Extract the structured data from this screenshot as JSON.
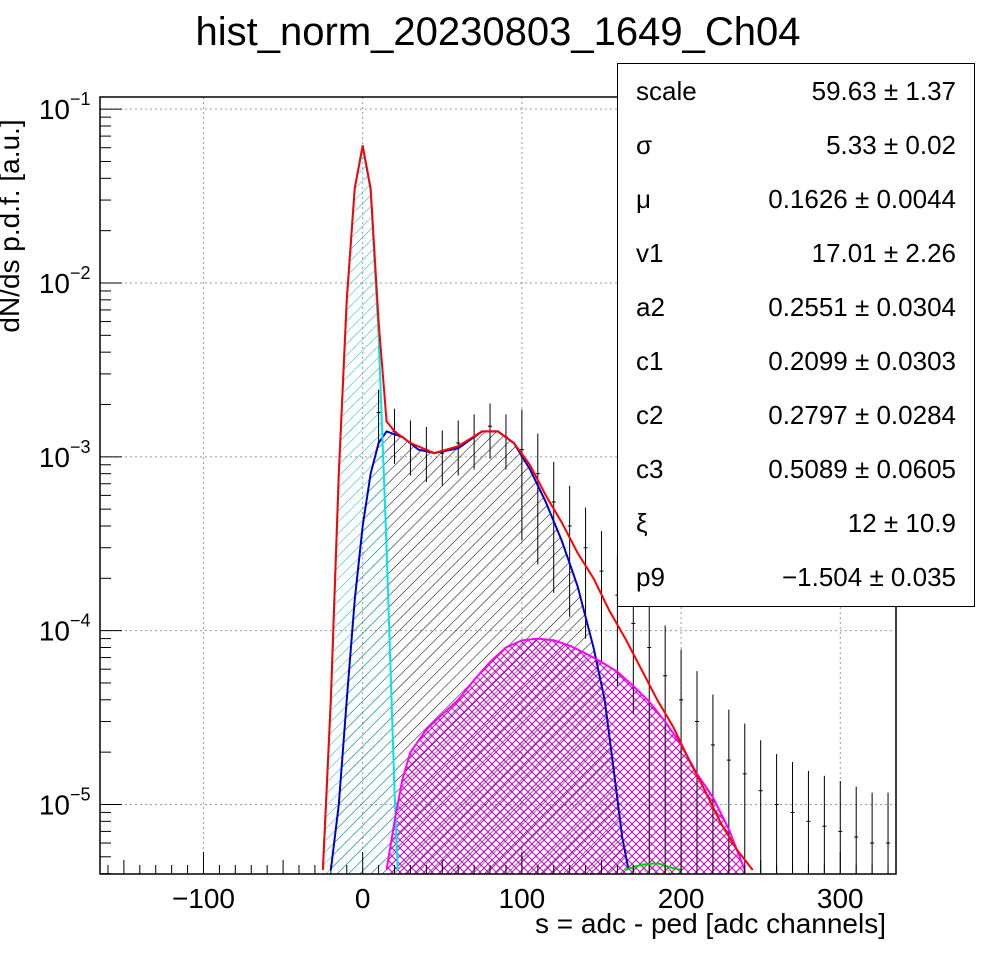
{
  "chart_data": {
    "type": "histogram",
    "title": "hist_norm_20230803_1649_Ch04",
    "xlabel": "s = adc - ped [adc channels]",
    "ylabel": "dN/ds p.d.f. [a.u.]",
    "xlim": [
      -165,
      335
    ],
    "ylim_log10": [
      -5.4,
      -0.93
    ],
    "yscale": "log",
    "grid": true,
    "x_ticks": [
      -100,
      0,
      100,
      200,
      300
    ],
    "x_tick_labels": [
      "−100",
      "0",
      "100",
      "200",
      "300"
    ],
    "y_ticks": [
      {
        "base": "10",
        "exp": "−1",
        "value": 0.1
      },
      {
        "base": "10",
        "exp": "−2",
        "value": 0.01
      },
      {
        "base": "10",
        "exp": "−3",
        "value": 0.001
      },
      {
        "base": "10",
        "exp": "−4",
        "value": 0.0001
      },
      {
        "base": "10",
        "exp": "−5",
        "value": 1e-05
      }
    ],
    "series": [
      {
        "color": "#ff0000",
        "kind": "curve",
        "points": [
          [
            -25,
            4.2e-06
          ],
          [
            -20,
            4e-05
          ],
          [
            -15,
            0.0008
          ],
          [
            -10,
            0.008
          ],
          [
            -5,
            0.035
          ],
          [
            0,
            0.062
          ],
          [
            5,
            0.035
          ],
          [
            10,
            0.006
          ],
          [
            15,
            0.0016
          ],
          [
            20,
            0.0014
          ],
          [
            30,
            0.0012
          ],
          [
            45,
            0.00105
          ],
          [
            60,
            0.00115
          ],
          [
            75,
            0.0014
          ],
          [
            85,
            0.0014
          ],
          [
            95,
            0.0012
          ],
          [
            105,
            0.0009
          ],
          [
            115,
            0.0006
          ],
          [
            125,
            0.00042
          ],
          [
            135,
            0.00028
          ],
          [
            145,
            0.0002
          ],
          [
            155,
            0.00013
          ],
          [
            165,
            9e-05
          ],
          [
            175,
            6e-05
          ],
          [
            185,
            4e-05
          ],
          [
            195,
            2.8e-05
          ],
          [
            205,
            1.8e-05
          ],
          [
            215,
            1.2e-05
          ],
          [
            225,
            7.8e-06
          ],
          [
            235,
            5.5e-06
          ],
          [
            245,
            4.2e-06
          ]
        ]
      },
      {
        "color": "#00e5ee",
        "kind": "filled",
        "points": [
          [
            -25,
            4.2e-06
          ],
          [
            -20,
            4e-05
          ],
          [
            -15,
            0.0008
          ],
          [
            -10,
            0.008
          ],
          [
            -5,
            0.035
          ],
          [
            0,
            0.06
          ],
          [
            5,
            0.034
          ],
          [
            10,
            0.005
          ],
          [
            15,
            0.0003
          ],
          [
            20,
            1.2e-05
          ],
          [
            22,
            4.2e-06
          ]
        ]
      },
      {
        "color": "#0000cc",
        "kind": "filled",
        "points": [
          [
            -20,
            4.2e-06
          ],
          [
            -15,
            1e-05
          ],
          [
            -10,
            4e-05
          ],
          [
            -5,
            0.00015
          ],
          [
            0,
            0.0004
          ],
          [
            5,
            0.0008
          ],
          [
            10,
            0.0012
          ],
          [
            15,
            0.0014
          ],
          [
            25,
            0.0013
          ],
          [
            35,
            0.0011
          ],
          [
            45,
            0.00105
          ],
          [
            60,
            0.00112
          ],
          [
            75,
            0.0014
          ],
          [
            85,
            0.0014
          ],
          [
            95,
            0.0012
          ],
          [
            105,
            0.00085
          ],
          [
            115,
            0.00055
          ],
          [
            125,
            0.00033
          ],
          [
            135,
            0.00018
          ],
          [
            145,
            8e-05
          ],
          [
            152,
            4e-05
          ],
          [
            158,
            1.5e-05
          ],
          [
            163,
            6.5e-06
          ],
          [
            167,
            4.2e-06
          ]
        ]
      },
      {
        "color": "#ff00ff",
        "kind": "filled",
        "points": [
          [
            15,
            4.2e-06
          ],
          [
            20,
            8e-06
          ],
          [
            25,
            1.4e-05
          ],
          [
            30,
            2e-05
          ],
          [
            40,
            2.7e-05
          ],
          [
            50,
            3.3e-05
          ],
          [
            60,
            4e-05
          ],
          [
            70,
            5.2e-05
          ],
          [
            80,
            6.6e-05
          ],
          [
            90,
            8e-05
          ],
          [
            100,
            8.8e-05
          ],
          [
            110,
            9e-05
          ],
          [
            120,
            8.8e-05
          ],
          [
            130,
            8.2e-05
          ],
          [
            140,
            7.4e-05
          ],
          [
            150,
            6.6e-05
          ],
          [
            160,
            5.8e-05
          ],
          [
            170,
            4.8e-05
          ],
          [
            180,
            3.9e-05
          ],
          [
            190,
            3e-05
          ],
          [
            200,
            2.2e-05
          ],
          [
            210,
            1.5e-05
          ],
          [
            220,
            1.1e-05
          ],
          [
            230,
            7.2e-06
          ],
          [
            240,
            4.2e-06
          ]
        ]
      },
      {
        "color": "#00cc00",
        "kind": "filled",
        "points": [
          [
            165,
            4.2e-06
          ],
          [
            175,
            4.5e-06
          ],
          [
            185,
            4.6e-06
          ],
          [
            195,
            4.3e-06
          ],
          [
            200,
            4.2e-06
          ]
        ]
      }
    ],
    "data_points_approx": [
      [
        10,
        0.0018
      ],
      [
        20,
        0.0014
      ],
      [
        30,
        0.0012
      ],
      [
        40,
        0.0011
      ],
      [
        50,
        0.00105
      ],
      [
        60,
        0.0012
      ],
      [
        70,
        0.0013
      ],
      [
        80,
        0.0015
      ],
      [
        90,
        0.0013
      ],
      [
        100,
        0.0011
      ],
      [
        110,
        0.0008
      ],
      [
        120,
        0.00055
      ],
      [
        130,
        0.0004
      ],
      [
        140,
        0.0003
      ],
      [
        150,
        0.00022
      ],
      [
        160,
        0.00016
      ],
      [
        170,
        0.00011
      ],
      [
        180,
        8e-05
      ],
      [
        190,
        5.5e-05
      ],
      [
        200,
        4e-05
      ],
      [
        210,
        3e-05
      ],
      [
        220,
        2.2e-05
      ],
      [
        230,
        1.8e-05
      ],
      [
        240,
        1.5e-05
      ],
      [
        250,
        1.2e-05
      ],
      [
        260,
        1e-05
      ],
      [
        270,
        9e-06
      ],
      [
        280,
        8e-06
      ],
      [
        290,
        7.5e-06
      ],
      [
        300,
        7e-06
      ],
      [
        310,
        6.5e-06
      ],
      [
        320,
        6e-06
      ],
      [
        330,
        6e-06
      ]
    ]
  },
  "stats": [
    {
      "name": "scale",
      "value": "59.63 ± 1.37"
    },
    {
      "name": "σ",
      "value": "5.33 ± 0.02"
    },
    {
      "name": "μ",
      "value": "0.1626 ± 0.0044"
    },
    {
      "name": "v1",
      "value": "17.01 ± 2.26"
    },
    {
      "name": "a2",
      "value": "0.2551 ± 0.0304"
    },
    {
      "name": "c1",
      "value": "0.2099 ± 0.0303"
    },
    {
      "name": "c2",
      "value": "0.2797 ± 0.0284"
    },
    {
      "name": "c3",
      "value": "0.5089 ± 0.0605"
    },
    {
      "name": "ξ",
      "value": "12 ± 10.9"
    },
    {
      "name": "p9",
      "value": "−1.504 ± 0.035"
    }
  ]
}
